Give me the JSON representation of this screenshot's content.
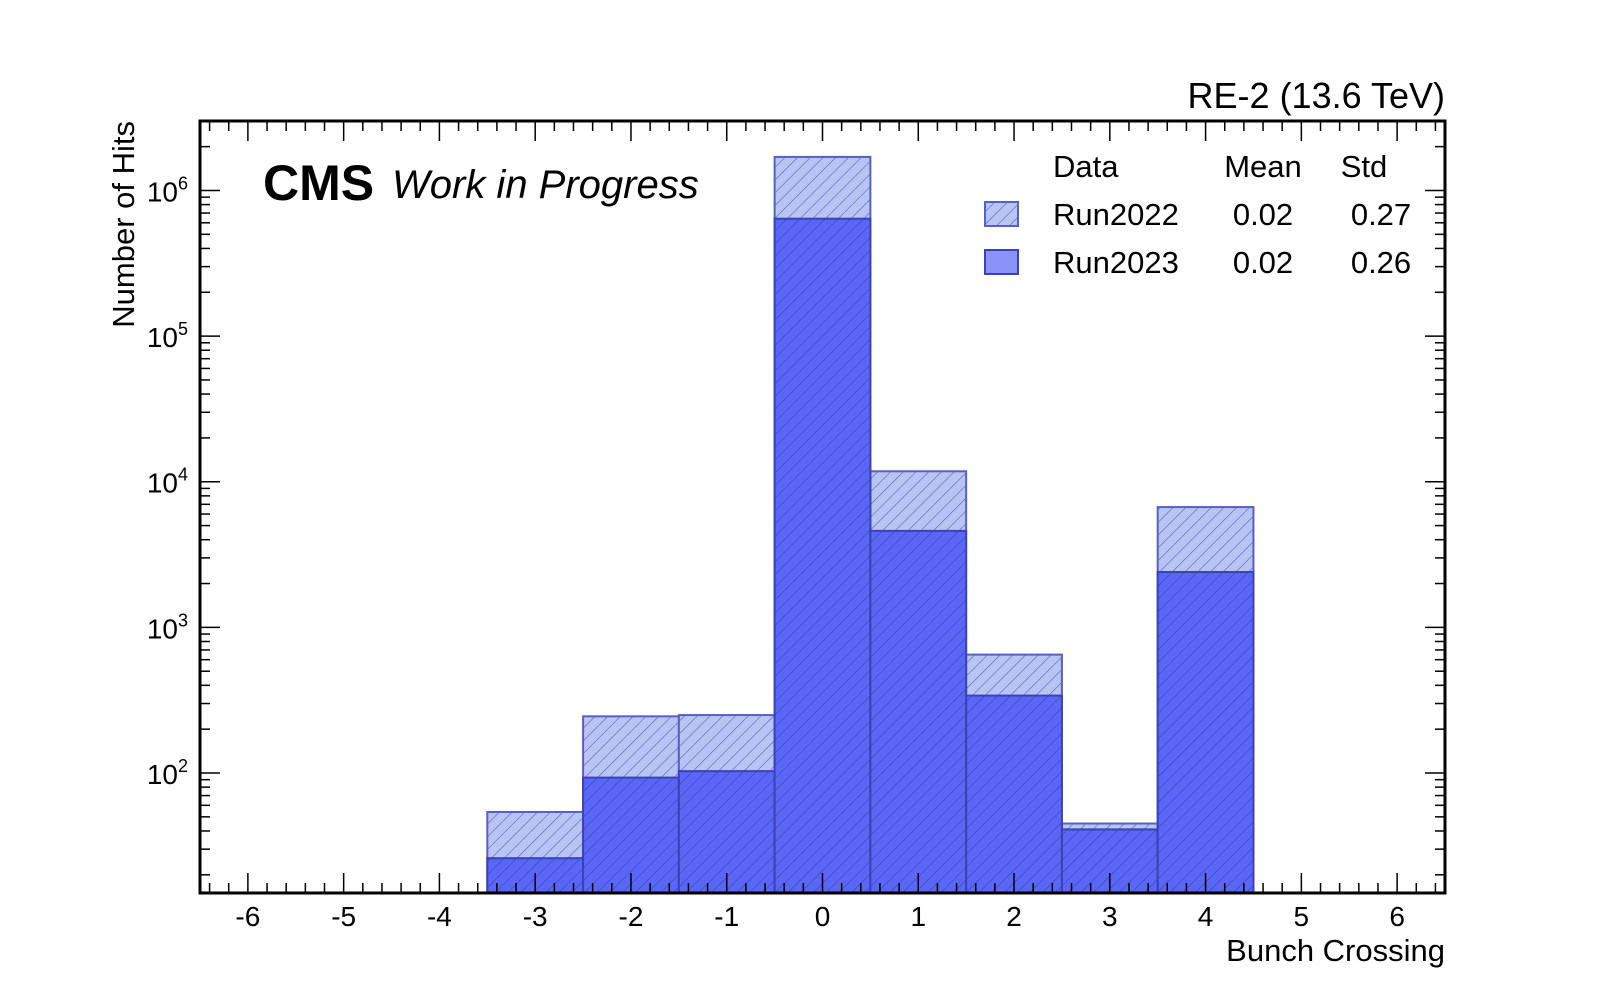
{
  "chart_data": {
    "type": "bar",
    "subtype": "overlaid-histogram",
    "experiment_label": "CMS",
    "status_label": "Work in Progress",
    "region_label": "RE-2 (13.6 TeV)",
    "xlabel": "Bunch Crossing",
    "ylabel": "Number of Hits",
    "y_scale": "log",
    "xlim": [
      -6.5,
      6.5
    ],
    "ylim": [
      15,
      3000000
    ],
    "x_ticks": [
      "-6",
      "-5",
      "-4",
      "-3",
      "-2",
      "-1",
      "0",
      "1",
      "2",
      "3",
      "4",
      "5",
      "6"
    ],
    "y_ticks": [
      {
        "value": 100,
        "base": "10",
        "exp": "2"
      },
      {
        "value": 1000,
        "base": "10",
        "exp": "3"
      },
      {
        "value": 10000,
        "base": "10",
        "exp": "4"
      },
      {
        "value": 100000,
        "base": "10",
        "exp": "5"
      },
      {
        "value": 1000000,
        "base": "10",
        "exp": "6"
      }
    ],
    "categories": [
      -3,
      -2,
      -1,
      0,
      1,
      2,
      3,
      4
    ],
    "series": [
      {
        "name": "Run2022",
        "mean": "0.02",
        "std": "0.27",
        "color": "#b8c4f2",
        "edge": "#5560c8",
        "values": [
          54,
          245,
          250,
          1700000,
          11800,
          650,
          45,
          6700
        ]
      },
      {
        "name": "Run2023",
        "mean": "0.02",
        "std": "0.26",
        "color": "#5a66f6",
        "edge": "#3a42b8",
        "values": [
          26,
          93,
          103,
          640000,
          4600,
          340,
          41,
          2400
        ]
      }
    ],
    "legend": {
      "placement": "top-right",
      "header_data": "Data",
      "header_mean": "Mean",
      "header_std": "Std"
    }
  }
}
